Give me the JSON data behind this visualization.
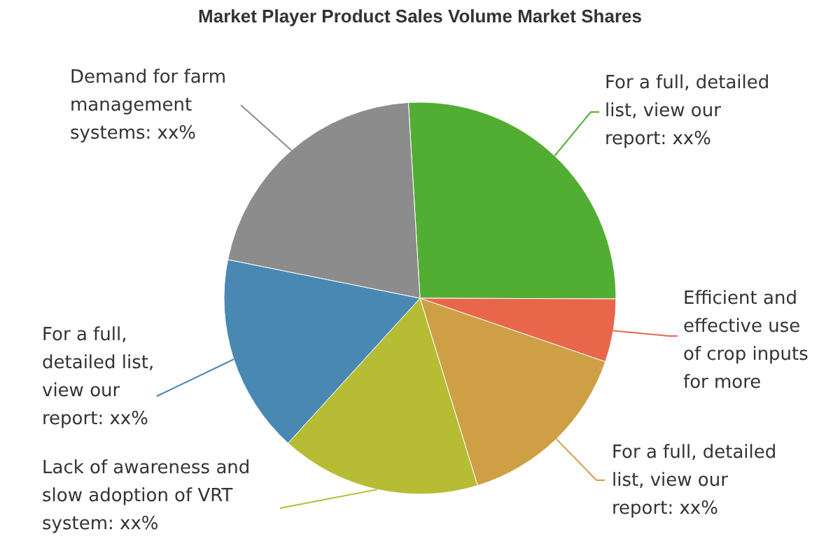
{
  "chart_data": {
    "type": "pie",
    "title": "Market Player Product Sales Volume Market Shares",
    "categories": [
      "For a full, detailed list, view our report: xx%",
      "Efficient and effective use of crop inputs for more",
      "For a full, detailed list, view our report: xx%",
      "Lack of awareness and slow adoption of VRT system: xx%",
      "For a full, detailed list, view our report: xx%",
      "Demand for farm management systems: xx%"
    ],
    "values": [
      26,
      5.2,
      15,
      16.5,
      16.4,
      20.9
    ],
    "colors": [
      "#52ae32",
      "#e8664a",
      "#cf9f45",
      "#b6bd35",
      "#4a88b4",
      "#8c8c8c"
    ]
  }
}
